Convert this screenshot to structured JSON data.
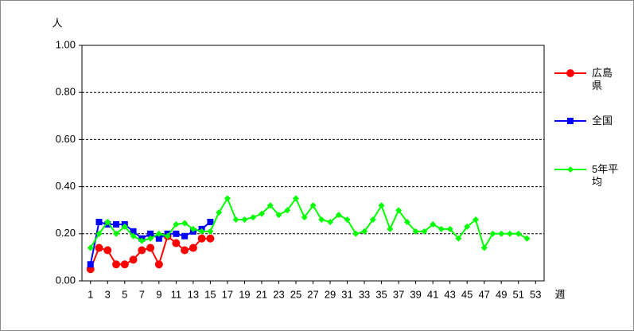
{
  "chart_data": {
    "type": "line",
    "y_label": "人",
    "x_label": "週",
    "x": [
      1,
      2,
      3,
      4,
      5,
      6,
      7,
      8,
      9,
      10,
      11,
      12,
      13,
      14,
      15,
      16,
      17,
      18,
      19,
      20,
      21,
      22,
      23,
      24,
      25,
      26,
      27,
      28,
      29,
      30,
      31,
      32,
      33,
      34,
      35,
      36,
      37,
      38,
      39,
      40,
      41,
      42,
      43,
      44,
      45,
      46,
      47,
      48,
      49,
      50,
      51,
      52,
      53
    ],
    "xlim": [
      0,
      54
    ],
    "xticks": [
      1,
      3,
      5,
      7,
      9,
      11,
      13,
      15,
      17,
      19,
      21,
      23,
      25,
      27,
      29,
      31,
      33,
      35,
      37,
      39,
      41,
      43,
      45,
      47,
      49,
      51,
      53
    ],
    "ylim": [
      0,
      1
    ],
    "yticks": [
      {
        "value": 0,
        "label": "0.00"
      },
      {
        "value": 0.2,
        "label": "0.20"
      },
      {
        "value": 0.4,
        "label": "0.40"
      },
      {
        "value": 0.6,
        "label": "0.60"
      },
      {
        "value": 0.8,
        "label": "0.80"
      },
      {
        "value": 1,
        "label": "1.00"
      }
    ],
    "grid": true,
    "series": [
      {
        "name": "広島県",
        "color": "#ff0000",
        "marker": "circle",
        "values": [
          0.05,
          0.14,
          0.13,
          0.07,
          0.07,
          0.09,
          0.13,
          0.14,
          0.07,
          0.19,
          0.16,
          0.13,
          0.14,
          0.18,
          0.18,
          null,
          null,
          null,
          null,
          null,
          null,
          null,
          null,
          null,
          null,
          null,
          null,
          null,
          null,
          null,
          null,
          null,
          null,
          null,
          null,
          null,
          null,
          null,
          null,
          null,
          null,
          null,
          null,
          null,
          null,
          null,
          null,
          null,
          null,
          null,
          null,
          null,
          null
        ]
      },
      {
        "name": "全国",
        "color": "#0000ff",
        "marker": "square",
        "values": [
          0.07,
          0.25,
          0.24,
          0.24,
          0.24,
          0.21,
          0.18,
          0.2,
          0.18,
          0.2,
          0.2,
          0.19,
          0.21,
          0.22,
          0.25,
          null,
          null,
          null,
          null,
          null,
          null,
          null,
          null,
          null,
          null,
          null,
          null,
          null,
          null,
          null,
          null,
          null,
          null,
          null,
          null,
          null,
          null,
          null,
          null,
          null,
          null,
          null,
          null,
          null,
          null,
          null,
          null,
          null,
          null,
          null,
          null,
          null,
          null
        ]
      },
      {
        "name": "5年平均",
        "color": "#00ff00",
        "marker": "diamond",
        "values": [
          0.14,
          0.2,
          0.25,
          0.2,
          0.23,
          0.19,
          0.17,
          0.18,
          0.2,
          0.19,
          0.24,
          0.245,
          0.22,
          0.21,
          0.21,
          0.29,
          0.35,
          0.26,
          0.26,
          0.27,
          0.285,
          0.32,
          0.28,
          0.3,
          0.35,
          0.27,
          0.32,
          0.26,
          0.25,
          0.28,
          0.26,
          0.2,
          0.21,
          0.26,
          0.32,
          0.22,
          0.3,
          0.25,
          0.21,
          0.21,
          0.24,
          0.22,
          0.22,
          0.18,
          0.23,
          0.26,
          0.14,
          0.2,
          0.2,
          0.2,
          0.2,
          0.18,
          null
        ]
      }
    ]
  }
}
